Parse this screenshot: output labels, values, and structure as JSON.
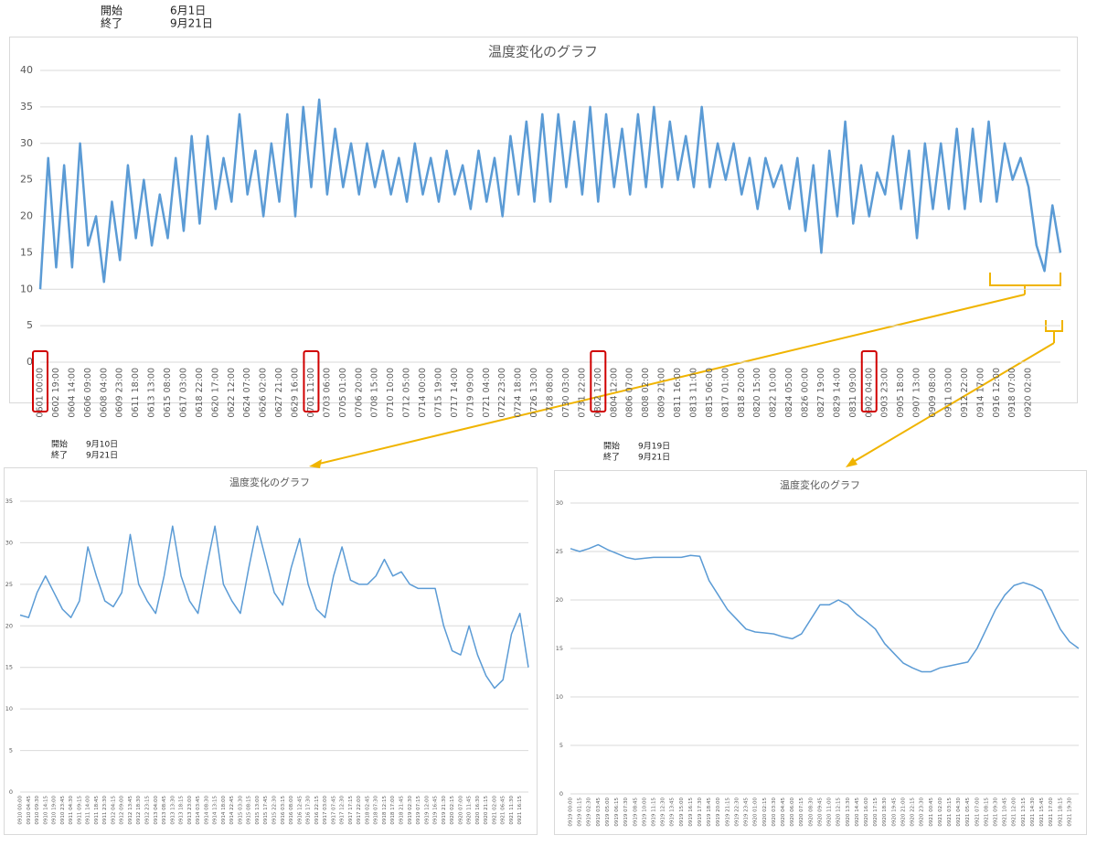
{
  "headers": [
    {
      "start_label": "開始",
      "start": "6月1日",
      "end_label": "終了",
      "end": "9月21日"
    },
    {
      "start_label": "開始",
      "start": "9月10日",
      "end_label": "終了",
      "end": "9月21日"
    },
    {
      "start_label": "開始",
      "start": "9月19日",
      "end_label": "終了",
      "end": "9月21日"
    }
  ],
  "chart_data": [
    {
      "type": "line",
      "title": "温度変化のグラフ",
      "color": "#5b9bd5",
      "ylim": [
        0,
        40
      ],
      "yticks": [
        0,
        5,
        10,
        15,
        20,
        25,
        30,
        35,
        40
      ],
      "grid": true,
      "highlighted_categories": [
        "0601 00:00",
        "0701 11:00",
        "0802 17:00",
        "0902 04:00"
      ],
      "categories": [
        "0601 00:00",
        null,
        "0602 19:00",
        null,
        "0604 14:00",
        null,
        "0606 09:00",
        null,
        "0608 04:00",
        null,
        "0609 23:00",
        null,
        "0611 18:00",
        null,
        "0613 13:00",
        null,
        "0615 08:00",
        null,
        "0617 03:00",
        null,
        "0618 22:00",
        null,
        "0620 17:00",
        null,
        "0622 12:00",
        null,
        "0624 07:00",
        null,
        "0626 02:00",
        null,
        "0627 21:00",
        null,
        "0629 16:00",
        null,
        "0701 11:00",
        null,
        "0703 06:00",
        null,
        "0705 01:00",
        null,
        "0706 20:00",
        null,
        "0708 15:00",
        null,
        "0710 10:00",
        null,
        "0712 05:00",
        null,
        "0714 00:00",
        null,
        "0715 19:00",
        null,
        "0717 14:00",
        null,
        "0719 09:00",
        null,
        "0721 04:00",
        null,
        "0722 23:00",
        null,
        "0724 18:00",
        null,
        "0726 13:00",
        null,
        "0728 08:00",
        null,
        "0730 03:00",
        null,
        "0731 22:00",
        null,
        "0802 17:00",
        null,
        "0804 12:00",
        null,
        "0806 07:00",
        null,
        "0808 02:00",
        null,
        "0809 21:00",
        null,
        "0811 16:00",
        null,
        "0813 11:00",
        null,
        "0815 06:00",
        null,
        "0817 01:00",
        null,
        "0818 20:00",
        null,
        "0820 15:00",
        null,
        "0822 10:00",
        null,
        "0824 05:00",
        null,
        "0826 00:00",
        null,
        "0827 19:00",
        null,
        "0829 14:00",
        null,
        "0831 09:00",
        null,
        "0902 04:00",
        null,
        "0903 23:00",
        null,
        "0905 18:00",
        null,
        "0907 13:00",
        null,
        "0909 08:00",
        null,
        "0911 03:00",
        null,
        "0912 22:00",
        null,
        "0914 17:00",
        null,
        "0916 12:00",
        null,
        "0918 07:00",
        null,
        "0920 02:00",
        null,
        null,
        null,
        null
      ],
      "values": [
        10,
        28,
        13,
        27,
        13,
        30,
        16,
        20,
        11,
        22,
        14,
        27,
        17,
        25,
        16,
        23,
        17,
        28,
        18,
        31,
        19,
        31,
        21,
        28,
        22,
        34,
        23,
        29,
        20,
        30,
        22,
        34,
        20,
        35,
        24,
        36,
        23,
        32,
        24,
        30,
        23,
        30,
        24,
        29,
        23,
        28,
        22,
        30,
        23,
        28,
        22,
        29,
        23,
        27,
        21,
        29,
        22,
        28,
        20,
        31,
        23,
        33,
        22,
        34,
        22,
        34,
        24,
        33,
        23,
        35,
        22,
        34,
        24,
        32,
        23,
        34,
        24,
        35,
        24,
        33,
        25,
        31,
        24,
        35,
        24,
        30,
        25,
        30,
        23,
        28,
        21,
        28,
        24,
        27,
        21,
        28,
        18,
        27,
        15,
        29,
        20,
        33,
        19,
        27,
        20,
        26,
        23,
        31,
        21,
        29,
        17,
        30,
        21,
        30,
        21,
        32,
        21,
        32,
        22,
        33,
        22,
        30,
        25,
        28,
        24,
        16,
        12.5,
        21.5,
        15
      ]
    },
    {
      "type": "line",
      "title": "温度変化のグラフ",
      "color": "#5b9bd5",
      "ylim": [
        0,
        35
      ],
      "yticks": [
        0,
        5,
        10,
        15,
        20,
        25,
        30,
        35
      ],
      "grid": true,
      "categories": [
        "0910 00:00",
        "0910 04:45",
        "0910 09:30",
        "0910 14:15",
        "0910 19:00",
        "0910 23:45",
        "0911 04:30",
        "0911 09:15",
        "0911 14:00",
        "0911 18:45",
        "0911 23:30",
        "0912 04:15",
        "0912 09:00",
        "0912 13:45",
        "0912 18:30",
        "0912 23:15",
        "0913 04:00",
        "0913 08:45",
        "0913 13:30",
        "0913 18:15",
        "0913 23:00",
        "0914 03:45",
        "0914 08:30",
        "0914 13:15",
        "0914 18:00",
        "0914 22:45",
        "0915 03:30",
        "0915 08:15",
        "0915 13:00",
        "0915 17:45",
        "0915 22:30",
        "0916 03:15",
        "0916 08:00",
        "0916 12:45",
        "0916 17:30",
        "0916 22:15",
        "0917 03:00",
        "0917 07:45",
        "0917 12:30",
        "0917 17:15",
        "0917 22:00",
        "0918 02:45",
        "0918 07:30",
        "0918 12:15",
        "0918 17:00",
        "0918 21:45",
        "0919 02:30",
        "0919 07:15",
        "0919 12:00",
        "0919 16:45",
        "0919 21:30",
        "0920 02:15",
        "0920 07:00",
        "0920 11:45",
        "0920 16:30",
        "0920 21:15",
        "0921 02:00",
        "0921 06:45",
        "0921 11:30",
        "0921 16:15",
        null
      ],
      "values": [
        21.3,
        21,
        24,
        26,
        24,
        22,
        21,
        23,
        29.5,
        26,
        23,
        22.3,
        24,
        31,
        25,
        23,
        21.5,
        26,
        32,
        26,
        23,
        21.5,
        27,
        32,
        25,
        23,
        21.5,
        27,
        32,
        28,
        24,
        22.5,
        27,
        30.5,
        25,
        22,
        21,
        26,
        29.5,
        25.5,
        25,
        25,
        26,
        28,
        26,
        26.5,
        25,
        24.5,
        24.5,
        24.5,
        20,
        17,
        16.5,
        20,
        16.5,
        14,
        12.5,
        13.5,
        19,
        21.5,
        15
      ]
    },
    {
      "type": "line",
      "title": "温度変化のグラフ",
      "color": "#5b9bd5",
      "ylim": [
        0,
        30
      ],
      "yticks": [
        0,
        5,
        10,
        15,
        20,
        25,
        30
      ],
      "grid": true,
      "categories": [
        "0919 00:00",
        "0919 01:15",
        "0919 02:30",
        "0919 03:45",
        "0919 05:00",
        "0919 06:15",
        "0919 07:30",
        "0919 08:45",
        "0919 10:00",
        "0919 11:15",
        "0919 12:30",
        "0919 13:45",
        "0919 15:00",
        "0919 16:15",
        "0919 17:30",
        "0919 18:45",
        "0919 20:00",
        "0919 21:15",
        "0919 22:30",
        "0919 23:45",
        "0920 01:00",
        "0920 02:15",
        "0920 03:30",
        "0920 04:45",
        "0920 06:00",
        "0920 07:15",
        "0920 08:30",
        "0920 09:45",
        "0920 11:00",
        "0920 12:15",
        "0920 13:30",
        "0920 14:45",
        "0920 16:00",
        "0920 17:15",
        "0920 18:30",
        "0920 19:45",
        "0920 21:00",
        "0920 22:15",
        "0920 23:30",
        "0921 00:45",
        "0921 02:00",
        "0921 03:15",
        "0921 04:30",
        "0921 05:45",
        "0921 07:00",
        "0921 08:15",
        "0921 09:30",
        "0921 10:45",
        "0921 12:00",
        "0921 13:15",
        "0921 14:30",
        "0921 15:45",
        "0921 17:00",
        "0921 18:15",
        "0921 19:30",
        null
      ],
      "values": [
        25.3,
        25,
        25.3,
        25.7,
        25.2,
        24.8,
        24.4,
        24.2,
        24.3,
        24.4,
        24.4,
        24.4,
        24.4,
        24.6,
        24.5,
        22,
        20.5,
        19,
        18,
        17,
        16.7,
        16.6,
        16.5,
        16.2,
        16,
        16.5,
        18,
        19.5,
        19.5,
        20,
        19.5,
        18.5,
        17.8,
        17,
        15.5,
        14.5,
        13.5,
        13,
        12.6,
        12.6,
        13,
        13.2,
        13.4,
        13.6,
        15,
        17,
        19,
        20.5,
        21.5,
        21.8,
        21.5,
        21,
        19,
        17,
        15.7,
        15
      ]
    }
  ]
}
